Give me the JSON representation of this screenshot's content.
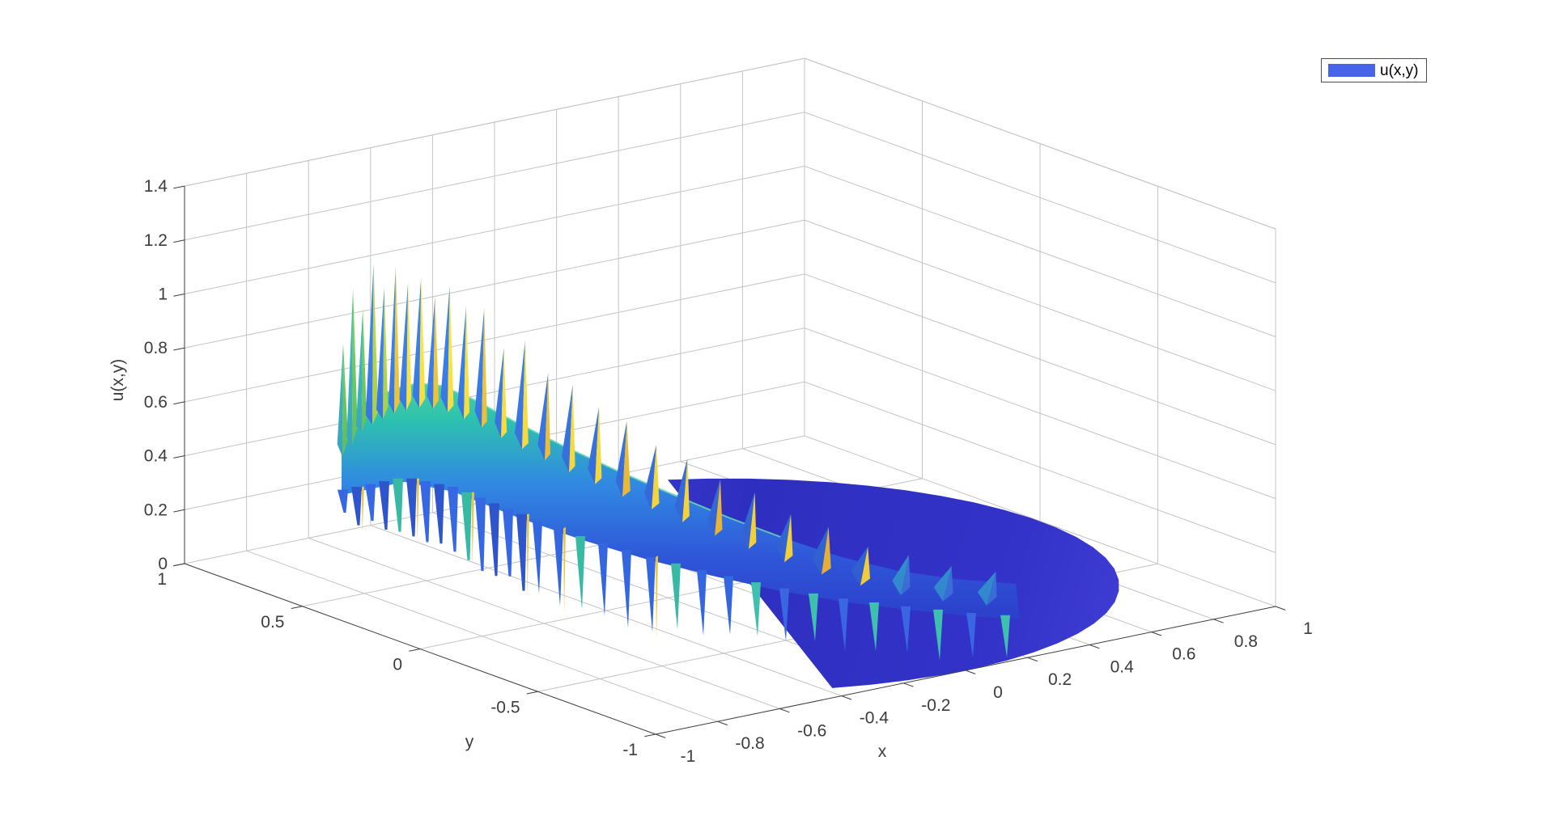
{
  "figure": {
    "background": "#ffffff"
  },
  "legend": {
    "label": "u(x,y)",
    "swatch_color": "#4564E9",
    "border_color": "#4d4d4d",
    "background": "#ffffff"
  },
  "axes3d": {
    "x": {
      "label": "x",
      "range": [
        -1,
        1
      ],
      "ticks": [
        -1,
        -0.8,
        -0.6,
        -0.4,
        -0.2,
        0,
        0.2,
        0.4,
        0.6,
        0.8,
        1
      ]
    },
    "y": {
      "label": "y",
      "range": [
        -1,
        1
      ],
      "ticks": [
        -1,
        -0.5,
        0,
        0.5,
        1
      ]
    },
    "z": {
      "label": "u(x,y)",
      "range": [
        0,
        1.4
      ],
      "ticks": [
        0,
        0.2,
        0.4,
        0.6,
        0.8,
        1,
        1.2,
        1.4
      ]
    },
    "grid": true,
    "colors": {
      "axis": "#3c3c3c",
      "grid": "#c3c3c3",
      "tick_label": "#3c3c3c"
    }
  },
  "chart_data": {
    "type": "surface",
    "title": "",
    "xlabel": "x",
    "ylabel": "y",
    "zlabel": "u(x,y)",
    "x_range": [
      -1,
      1
    ],
    "y_range": [
      -1,
      1
    ],
    "z_range": [
      0,
      1.4
    ],
    "domain": "unit disk x^2 + y^2 <= 1",
    "colormap": "parula (blue - teal - green - yellow)",
    "view": "3-D perspective, approx. azimuth -37.5 deg, elevation 30 deg",
    "legend_entries": [
      "u(x,y)"
    ],
    "grid": true,
    "surface_description": "Surface plot of u(x,y) over the unit disk: a low smooth indigo dome (u near 0) over the right part of the disk, a raised smooth teal-to-blue ridge near y = 0 on the left half, and a rapid oscillation along x near the left boundary rendered as alternating upward (yellow/blue, green at far left) and downward (blue) triangular spikes whose amplitude decays from x = -1 toward x = 0.5",
    "smooth_ridge_profile": [
      {
        "x": -1.0,
        "u": 0.5
      },
      {
        "x": -0.85,
        "u": 0.85
      },
      {
        "x": -0.7,
        "u": 0.75
      },
      {
        "x": -0.5,
        "u": 0.6
      },
      {
        "x": -0.3,
        "u": 0.45
      },
      {
        "x": -0.1,
        "u": 0.32
      },
      {
        "x": 0.1,
        "u": 0.22
      },
      {
        "x": 0.3,
        "u": 0.12
      },
      {
        "x": 0.6,
        "u": 0.04
      },
      {
        "x": 1.0,
        "u": 0.0
      }
    ],
    "spike_peak_envelope": [
      {
        "x": -1.0,
        "peak": 1.0
      },
      {
        "x": -0.9,
        "peak": 1.25
      },
      {
        "x": -0.8,
        "peak": 1.3
      },
      {
        "x": -0.6,
        "peak": 1.05
      },
      {
        "x": -0.4,
        "peak": 0.8
      },
      {
        "x": -0.2,
        "peak": 0.55
      },
      {
        "x": 0.0,
        "peak": 0.35
      },
      {
        "x": 0.2,
        "peak": 0.2
      },
      {
        "x": 0.4,
        "peak": 0.1
      }
    ],
    "colors": {
      "surface_dome": "#3232C8",
      "spike_blue": "#3467E0",
      "spike_yellow": "#F2CF39",
      "spike_green": "#55C46B",
      "ridge_teal": "#2EC3AD"
    }
  }
}
